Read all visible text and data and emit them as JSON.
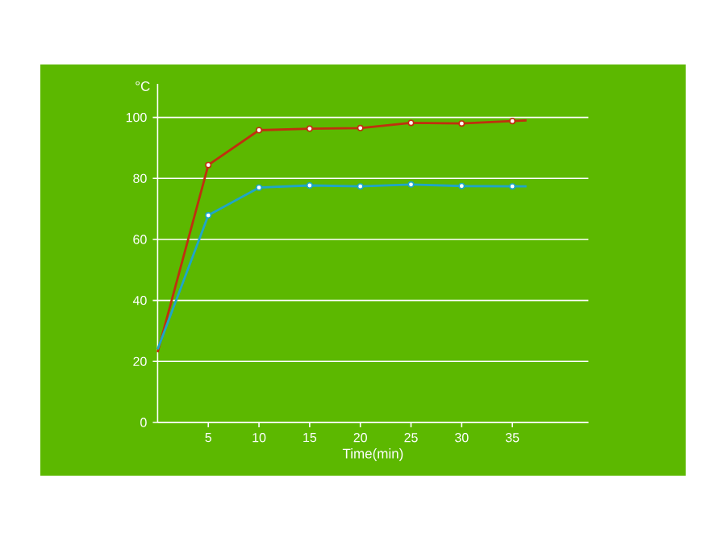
{
  "chart_data": {
    "type": "line",
    "xlabel": "Time(min)",
    "ylabel": "°C",
    "xlim": [
      0,
      42.5
    ],
    "ylim": [
      0,
      111
    ],
    "xticks": [
      5,
      10,
      15,
      20,
      25,
      30,
      35
    ],
    "yticks": [
      0,
      20,
      40,
      60,
      80,
      100
    ],
    "grid": "y",
    "marker": "circle",
    "line_style": "solid",
    "series": [
      {
        "color": "#c0300f",
        "x": [
          0,
          5,
          10,
          15,
          20,
          25,
          30,
          35,
          36.4
        ],
        "values": [
          23,
          84.4,
          95.8,
          96.3,
          96.5,
          98.2,
          98,
          98.8,
          99
        ]
      },
      {
        "color": "#1fa5c8",
        "x": [
          0,
          5,
          10,
          15,
          20,
          25,
          30,
          35,
          36.4
        ],
        "values": [
          24,
          67.9,
          77,
          77.7,
          77.4,
          78,
          77.5,
          77.4,
          77.4
        ]
      }
    ]
  }
}
